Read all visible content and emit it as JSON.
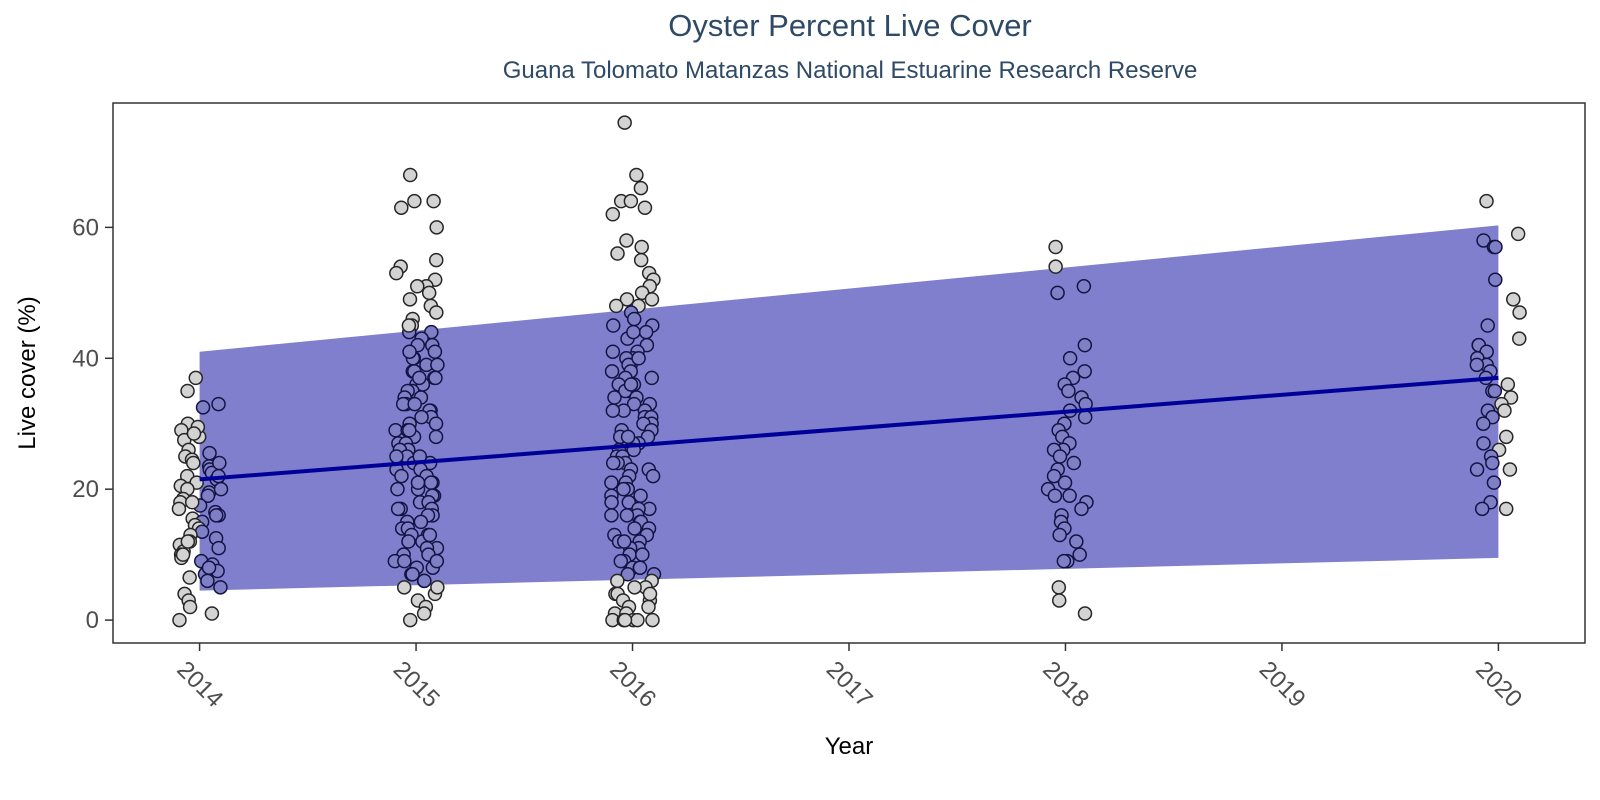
{
  "chart_data": {
    "type": "scatter",
    "title": "Oyster Percent Live Cover",
    "subtitle": "Guana Tolomato Matanzas National Estuarine Research Reserve",
    "xlabel": "Year",
    "ylabel": "Live cover (%)",
    "xlim": [
      2013.6,
      2020.4
    ],
    "ylim": [
      -3.5,
      79
    ],
    "x_ticks": [
      "2014",
      "2015",
      "2016",
      "2017",
      "2018",
      "2019",
      "2020"
    ],
    "y_ticks": [
      "0",
      "20",
      "40",
      "60"
    ],
    "x_tick_rotation_deg": 45,
    "grid": false,
    "legend": "none",
    "trend": {
      "x": [
        2014,
        2020
      ],
      "y": [
        21.5,
        37.0
      ]
    },
    "ribbon": {
      "x": [
        2014,
        2020
      ],
      "lower": [
        4.5,
        9.5
      ],
      "upper": [
        41.0,
        60.3
      ]
    },
    "colors": {
      "title": "#2e4a66",
      "point_fill": "#d3d3d3",
      "point_stroke": "#262626",
      "line": "#000099",
      "ribbon": "#00009c",
      "ribbon_alpha": 0.5
    },
    "points": {
      "2014": [
        37,
        35,
        30,
        29,
        28,
        27.5,
        26,
        25.5,
        25,
        24.5,
        24,
        23.5,
        23,
        22.5,
        22,
        21.5,
        21,
        20.5,
        20,
        19.5,
        19,
        18.5,
        18,
        17.5,
        17,
        16.5,
        16,
        15.5,
        15,
        14.5,
        14,
        13.5,
        13,
        12.5,
        12,
        11.5,
        11,
        10.5,
        10,
        9.5,
        9,
        8.5,
        8,
        7.5,
        7,
        6.5,
        6,
        5,
        4,
        3,
        2,
        1,
        0,
        33,
        32.5,
        29.5,
        28.5,
        24,
        22,
        20,
        18,
        16,
        12,
        10,
        8
      ],
      "2015": [
        68,
        64,
        64,
        63,
        60,
        55,
        54,
        53,
        52,
        51,
        51,
        50,
        49,
        48,
        47,
        46,
        45,
        44,
        44,
        43,
        42,
        42,
        41,
        40,
        40,
        39,
        39,
        38,
        38,
        37,
        37,
        36,
        36,
        35,
        35,
        34,
        34,
        33,
        33,
        32,
        32,
        31,
        31,
        30,
        30,
        29,
        29,
        28,
        28,
        27,
        27,
        26,
        26,
        25,
        25,
        24,
        24,
        23,
        23,
        22,
        22,
        21,
        21,
        20,
        20,
        19,
        19,
        18,
        18,
        17,
        17,
        16,
        16,
        15,
        15,
        14,
        14,
        13,
        13,
        12,
        12,
        11,
        11,
        10,
        10,
        9,
        9,
        8,
        8,
        7,
        7,
        6,
        6,
        5,
        4,
        3,
        2,
        1,
        0,
        45,
        41,
        37,
        33,
        29,
        25,
        21,
        17,
        13,
        9,
        5
      ],
      "2016": [
        76,
        68,
        66,
        64,
        64,
        63,
        62,
        58,
        57,
        56,
        55,
        53,
        52,
        51,
        50,
        49,
        49,
        48,
        47,
        46,
        45,
        45,
        44,
        43,
        42,
        41,
        41,
        40,
        40,
        39,
        39,
        38,
        38,
        37,
        37,
        36,
        36,
        35,
        35,
        34,
        34,
        33,
        33,
        32,
        32,
        31,
        31,
        30,
        30,
        29,
        29,
        28,
        28,
        27,
        27,
        26,
        26,
        25,
        25,
        24,
        24,
        23,
        23,
        22,
        22,
        21,
        21,
        20,
        20,
        19,
        19,
        18,
        18,
        17,
        17,
        16,
        16,
        15,
        15,
        14,
        14,
        13,
        13,
        12,
        12,
        11,
        11,
        10,
        10,
        9,
        9,
        8,
        8,
        7,
        7,
        6,
        6,
        5,
        5,
        4,
        4,
        3,
        3,
        2,
        2,
        1,
        1,
        0,
        0,
        0,
        0,
        0,
        0,
        48,
        44,
        40,
        36,
        32,
        28,
        24,
        20,
        16,
        12,
        8,
        4
      ],
      "2018": [
        57,
        54,
        51,
        50,
        42,
        40,
        38,
        37,
        36,
        35,
        34,
        33,
        32,
        31,
        30,
        30,
        29,
        28,
        27,
        26,
        26,
        25,
        24,
        23,
        22,
        21,
        20,
        19,
        19,
        18,
        17,
        16,
        15,
        14,
        13,
        12,
        10,
        9,
        9,
        5,
        3,
        1
      ],
      "2020": [
        64,
        59,
        58,
        57,
        57,
        52,
        49,
        47,
        45,
        43,
        42,
        42,
        41,
        40,
        39,
        39,
        38,
        37,
        36,
        35,
        35,
        34,
        33,
        32,
        32,
        31,
        30,
        28,
        27,
        26,
        25,
        24,
        23,
        23,
        21,
        18,
        17,
        17
      ]
    }
  }
}
